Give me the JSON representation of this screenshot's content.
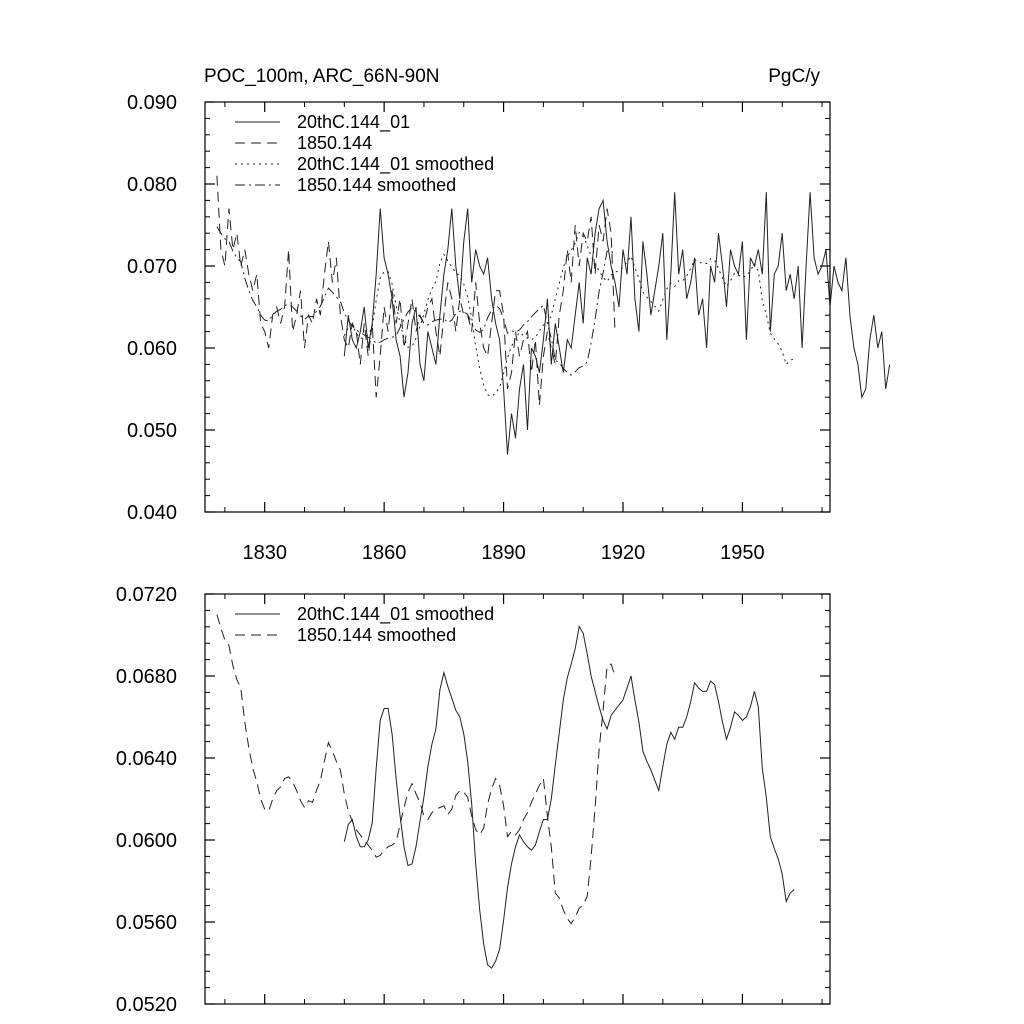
{
  "chart_data": [
    {
      "type": "line",
      "title": "POC_100m, ARC_66N-90N",
      "units": "PgC/y",
      "xlim": [
        1815,
        1972
      ],
      "ylim": [
        0.04,
        0.09
      ],
      "yticks": [
        "0.040",
        "0.050",
        "0.060",
        "0.070",
        "0.080",
        "0.090"
      ],
      "xticks": [
        "1830",
        "1860",
        "1890",
        "1920",
        "1950"
      ],
      "legend_position": "top-left",
      "series": [
        {
          "name": "20thC.144_01",
          "style": "solid",
          "x0": 1850,
          "values": [
            0.059,
            0.064,
            0.061,
            0.06,
            0.062,
            0.065,
            0.06,
            0.063,
            0.069,
            0.077,
            0.071,
            0.069,
            0.066,
            0.061,
            0.059,
            0.054,
            0.057,
            0.063,
            0.065,
            0.058,
            0.056,
            0.062,
            0.06,
            0.058,
            0.064,
            0.069,
            0.072,
            0.077,
            0.07,
            0.066,
            0.073,
            0.077,
            0.068,
            0.072,
            0.07,
            0.069,
            0.071,
            0.066,
            0.063,
            0.061,
            0.055,
            0.047,
            0.052,
            0.049,
            0.055,
            0.058,
            0.05,
            0.06,
            0.059,
            0.057,
            0.061,
            0.066,
            0.058,
            0.063,
            0.06,
            0.057,
            0.061,
            0.06,
            0.064,
            0.068,
            0.063,
            0.071,
            0.069,
            0.074,
            0.077,
            0.078,
            0.073,
            0.07,
            0.068,
            0.065,
            0.072,
            0.069,
            0.076,
            0.066,
            0.062,
            0.073,
            0.069,
            0.064,
            0.067,
            0.07,
            0.074,
            0.061,
            0.069,
            0.079,
            0.069,
            0.072,
            0.066,
            0.068,
            0.071,
            0.064,
            0.066,
            0.06,
            0.07,
            0.068,
            0.074,
            0.07,
            0.065,
            0.072,
            0.07,
            0.069,
            0.073,
            0.061,
            0.071,
            0.07,
            0.072,
            0.069,
            0.079,
            0.062,
            0.069,
            0.07,
            0.074,
            0.067,
            0.069,
            0.066,
            0.07,
            0.06,
            0.07,
            0.079,
            0.071,
            0.069,
            0.07,
            0.072,
            0.065,
            0.07,
            0.068,
            0.067,
            0.071,
            0.064,
            0.06,
            0.058,
            0.054,
            0.055,
            0.061,
            0.064,
            0.06,
            0.062,
            0.055,
            0.058
          ]
        },
        {
          "name": "1850.144",
          "style": "dashed",
          "x0": 1818,
          "values": [
            0.081,
            0.072,
            0.07,
            0.077,
            0.072,
            0.074,
            0.07,
            0.072,
            0.069,
            0.067,
            0.069,
            0.063,
            0.062,
            0.06,
            0.064,
            0.065,
            0.063,
            0.065,
            0.072,
            0.062,
            0.064,
            0.067,
            0.06,
            0.064,
            0.063,
            0.066,
            0.064,
            0.069,
            0.073,
            0.068,
            0.071,
            0.064,
            0.061,
            0.06,
            0.063,
            0.062,
            0.058,
            0.063,
            0.059,
            0.063,
            0.054,
            0.059,
            0.065,
            0.062,
            0.067,
            0.063,
            0.066,
            0.06,
            0.063,
            0.066,
            0.062,
            0.064,
            0.063,
            0.065,
            0.066,
            0.062,
            0.059,
            0.064,
            0.068,
            0.066,
            0.062,
            0.066,
            0.064,
            0.064,
            0.062,
            0.068,
            0.063,
            0.06,
            0.059,
            0.063,
            0.067,
            0.067,
            0.064,
            0.055,
            0.057,
            0.062,
            0.059,
            0.061,
            0.062,
            0.057,
            0.061,
            0.053,
            0.059,
            0.062,
            0.06,
            0.058,
            0.064,
            0.067,
            0.072,
            0.068,
            0.075,
            0.07,
            0.074,
            0.073,
            0.076,
            0.069,
            0.075,
            0.073,
            0.077,
            0.074,
            0.062
          ]
        },
        {
          "name": "20thC.144_01 smoothed",
          "style": "dotted",
          "x0": 1850,
          "values": [
            0.0615,
            0.0625,
            0.0628,
            0.0618,
            0.0612,
            0.0612,
            0.0616,
            0.0626,
            0.0658,
            0.0686,
            0.0693,
            0.0693,
            0.0678,
            0.0652,
            0.063,
            0.0612,
            0.0601,
            0.0602,
            0.0612,
            0.0627,
            0.0641,
            0.0659,
            0.0672,
            0.0681,
            0.0704,
            0.0714,
            0.0706,
            0.0699,
            0.0692,
            0.0688,
            0.0678,
            0.0662,
            0.0637,
            0.0602,
            0.0575,
            0.0555,
            0.0543,
            0.0541,
            0.0545,
            0.0552,
            0.0569,
            0.0588,
            0.0602,
            0.0612,
            0.0619,
            0.0615,
            0.0612,
            0.061,
            0.0613,
            0.0621,
            0.0628,
            0.0628,
            0.064,
            0.066,
            0.0679,
            0.0698,
            0.0711,
            0.0719,
            0.0728,
            0.0741,
            0.0737,
            0.0725,
            0.0712,
            0.0703,
            0.0694,
            0.0686,
            0.0681,
            0.0689,
            0.0692,
            0.0695,
            0.0698,
            0.0705,
            0.0712,
            0.0698,
            0.0685,
            0.0668,
            0.0662,
            0.0657,
            0.0651,
            0.0645,
            0.0659,
            0.0672,
            0.0679,
            0.0675,
            0.0682,
            0.0682,
            0.0688,
            0.0697,
            0.0708,
            0.0705,
            0.0703,
            0.0703,
            0.0709,
            0.0707,
            0.0697,
            0.0685,
            0.0675,
            0.0682,
            0.0691,
            0.0689,
            0.0686,
            0.0688,
            0.0694,
            0.0703,
            0.0694,
            0.0658,
            0.0641,
            0.0618,
            0.0611,
            0.0605,
            0.0596,
            0.058,
            0.0585,
            0.0587
          ]
        },
        {
          "name": "1850.144 smoothed",
          "style": "dashdot",
          "x0": 1818,
          "values": [
            0.0748,
            0.074,
            0.0733,
            0.073,
            0.0718,
            0.071,
            0.0705,
            0.0685,
            0.067,
            0.0658,
            0.065,
            0.064,
            0.0634,
            0.0633,
            0.064,
            0.0645,
            0.0647,
            0.0652,
            0.0653,
            0.065,
            0.0645,
            0.0639,
            0.0635,
            0.0639,
            0.0638,
            0.0645,
            0.0651,
            0.0662,
            0.0673,
            0.0668,
            0.0662,
            0.0657,
            0.0643,
            0.0633,
            0.0627,
            0.0622,
            0.0619,
            0.0616,
            0.0613,
            0.061,
            0.0606,
            0.0607,
            0.061,
            0.0612,
            0.0613,
            0.0615,
            0.0625,
            0.0635,
            0.0644,
            0.0649,
            0.0643,
            0.0638,
            0.063,
            0.0628,
            0.0632,
            0.0634,
            0.0635,
            0.0636,
            0.0631,
            0.0634,
            0.0642,
            0.0645,
            0.0644,
            0.0641,
            0.063,
            0.0622,
            0.0619,
            0.0623,
            0.0637,
            0.0646,
            0.0652,
            0.0648,
            0.0636,
            0.0618,
            0.0621,
            0.0619,
            0.0622,
            0.0628,
            0.0632,
            0.0638,
            0.0643,
            0.0648,
            0.0652,
            0.063,
            0.0612,
            0.0585,
            0.0582,
            0.0575,
            0.057,
            0.0567,
            0.0571,
            0.0576,
            0.0578,
            0.0583,
            0.0606,
            0.0635,
            0.0669,
            0.0692,
            0.0718,
            0.0719,
            0.0712
          ]
        }
      ]
    },
    {
      "type": "line",
      "title": "",
      "xlim": [
        1815,
        1972
      ],
      "ylim": [
        0.052,
        0.076
      ],
      "yticks": [
        "0.0520",
        "0.0560",
        "0.0600",
        "0.0640",
        "0.0680",
        "0.0720"
      ],
      "legend_position": "top-left",
      "series": [
        {
          "name": "20thC.144_01 smoothed",
          "style": "solid",
          "ref": 2
        },
        {
          "name": "1850.144 smoothed",
          "style": "dashed",
          "ref": 3
        }
      ]
    }
  ]
}
